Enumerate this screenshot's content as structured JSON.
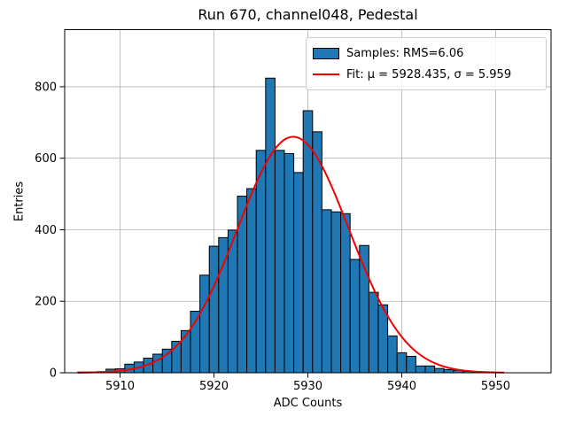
{
  "figure": {
    "background": "#ffffff"
  },
  "chart_data": {
    "type": "bar",
    "subtype": "histogram",
    "title": "Run 670, channel048, Pedestal",
    "xlabel": "ADC Counts",
    "ylabel": "Entries",
    "bin_width": 1,
    "bin_centers": [
      5906,
      5907,
      5908,
      5909,
      5910,
      5911,
      5912,
      5913,
      5914,
      5915,
      5916,
      5917,
      5918,
      5919,
      5920,
      5921,
      5922,
      5923,
      5924,
      5925,
      5926,
      5927,
      5928,
      5929,
      5930,
      5931,
      5932,
      5933,
      5934,
      5935,
      5936,
      5937,
      5938,
      5939,
      5940,
      5941,
      5942,
      5943,
      5944,
      5945,
      5946,
      5947,
      5948,
      5949
    ],
    "counts": [
      2,
      2,
      3,
      10,
      11,
      24,
      30,
      41,
      52,
      66,
      88,
      118,
      172,
      273,
      354,
      378,
      399,
      494,
      515,
      622,
      824,
      622,
      613,
      560,
      733,
      674,
      456,
      450,
      445,
      317,
      356,
      225,
      190,
      103,
      56,
      46,
      19,
      19,
      12,
      9,
      7,
      4,
      3,
      2
    ],
    "bar_color": "#1f77b4",
    "bar_edge_color": "#000000",
    "fit": {
      "mu": 5928.435,
      "sigma": 5.959,
      "amplitude": 660,
      "color": "#f40000",
      "x_start": 5905.5,
      "x_end": 5951
    },
    "xlim": [
      5904.1,
      5955.9
    ],
    "ylim": [
      0,
      959.6
    ],
    "xticks": [
      5910,
      5920,
      5930,
      5940,
      5950
    ],
    "yticks": [
      0,
      200,
      400,
      600,
      800
    ],
    "grid": true,
    "grid_color": "#b0b0b0",
    "axis_color": "#000000",
    "legend": {
      "position": "upper right",
      "entries": [
        {
          "type": "patch",
          "label": "Samples: RMS=6.06"
        },
        {
          "type": "line",
          "label": "Fit: μ = 5928.435, σ = 5.959"
        }
      ]
    }
  }
}
